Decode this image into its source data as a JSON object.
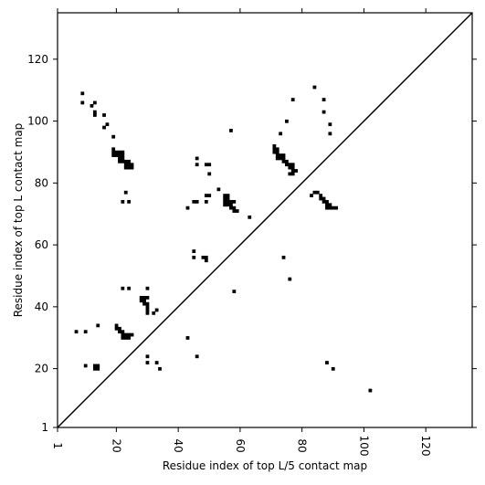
{
  "chart_data": {
    "type": "heatmap",
    "title": "",
    "xlabel": "Residue index of top L/5 contact map",
    "ylabel": "Residue index of top L contact map",
    "xlim": [
      1,
      135
    ],
    "ylim": [
      1,
      135
    ],
    "x_ticks": [
      "1",
      "20",
      "40",
      "60",
      "80",
      "100",
      "120"
    ],
    "y_ticks": [
      "1",
      "20",
      "40",
      "60",
      "80",
      "100",
      "120"
    ],
    "x_tick_rotation": 90,
    "diagonal_line": {
      "from": [
        1,
        1
      ],
      "to": [
        135,
        135
      ]
    },
    "grid": false,
    "cell_color": "#000000",
    "lower_triangle_contacts": [
      [
        7,
        32
      ],
      [
        10,
        32
      ],
      [
        10,
        21
      ],
      [
        13,
        21
      ],
      [
        13,
        20
      ],
      [
        14,
        21
      ],
      [
        14,
        20
      ],
      [
        14,
        34
      ],
      [
        20,
        34
      ],
      [
        20,
        33
      ],
      [
        21,
        33
      ],
      [
        21,
        32
      ],
      [
        22,
        32
      ],
      [
        22,
        31
      ],
      [
        22,
        30
      ],
      [
        23,
        31
      ],
      [
        23,
        30
      ],
      [
        24,
        31
      ],
      [
        24,
        30
      ],
      [
        25,
        31
      ],
      [
        22,
        46
      ],
      [
        24,
        46
      ],
      [
        28,
        43
      ],
      [
        29,
        43
      ],
      [
        28,
        42
      ],
      [
        29,
        42
      ],
      [
        30,
        43
      ],
      [
        29,
        41
      ],
      [
        30,
        41
      ],
      [
        30,
        40
      ],
      [
        30,
        39
      ],
      [
        30,
        38
      ],
      [
        32,
        38
      ],
      [
        33,
        39
      ],
      [
        30,
        46
      ],
      [
        30,
        24
      ],
      [
        30,
        22
      ],
      [
        33,
        22
      ],
      [
        34,
        20
      ],
      [
        43,
        30
      ],
      [
        46,
        24
      ],
      [
        45,
        58
      ],
      [
        45,
        56
      ],
      [
        48,
        56
      ],
      [
        49,
        56
      ],
      [
        49,
        55
      ],
      [
        58,
        45
      ],
      [
        74,
        56
      ],
      [
        76,
        49
      ],
      [
        83,
        76
      ],
      [
        84,
        77
      ],
      [
        85,
        77
      ],
      [
        86,
        76
      ],
      [
        86,
        75
      ],
      [
        87,
        75
      ],
      [
        87,
        74
      ],
      [
        88,
        74
      ],
      [
        88,
        73
      ],
      [
        88,
        72
      ],
      [
        89,
        73
      ],
      [
        89,
        72
      ],
      [
        90,
        72
      ],
      [
        91,
        72
      ],
      [
        88,
        22
      ],
      [
        90,
        20
      ],
      [
        102,
        13
      ]
    ],
    "upper_triangle_contacts": [
      [
        9,
        109
      ],
      [
        9,
        106
      ],
      [
        12,
        105
      ],
      [
        13,
        106
      ],
      [
        13,
        103
      ],
      [
        13,
        102
      ],
      [
        16,
        102
      ],
      [
        16,
        98
      ],
      [
        17,
        99
      ],
      [
        19,
        95
      ],
      [
        19,
        91
      ],
      [
        19,
        90
      ],
      [
        19,
        89
      ],
      [
        20,
        90
      ],
      [
        20,
        89
      ],
      [
        21,
        90
      ],
      [
        21,
        89
      ],
      [
        22,
        90
      ],
      [
        22,
        89
      ],
      [
        21,
        88
      ],
      [
        22,
        88
      ],
      [
        21,
        87
      ],
      [
        22,
        87
      ],
      [
        23,
        87
      ],
      [
        24,
        87
      ],
      [
        23,
        86
      ],
      [
        24,
        86
      ],
      [
        25,
        86
      ],
      [
        23,
        85
      ],
      [
        24,
        85
      ],
      [
        25,
        85
      ],
      [
        23,
        77
      ],
      [
        22,
        74
      ],
      [
        24,
        74
      ],
      [
        43,
        72
      ],
      [
        45,
        74
      ],
      [
        46,
        74
      ],
      [
        46,
        88
      ],
      [
        46,
        86
      ],
      [
        49,
        86
      ],
      [
        50,
        86
      ],
      [
        50,
        83
      ],
      [
        49,
        76
      ],
      [
        50,
        76
      ],
      [
        49,
        74
      ],
      [
        53,
        78
      ],
      [
        55,
        76
      ],
      [
        56,
        76
      ],
      [
        55,
        75
      ],
      [
        56,
        75
      ],
      [
        55,
        74
      ],
      [
        56,
        74
      ],
      [
        57,
        74
      ],
      [
        58,
        74
      ],
      [
        55,
        73
      ],
      [
        56,
        73
      ],
      [
        57,
        73
      ],
      [
        57,
        72
      ],
      [
        58,
        72
      ],
      [
        58,
        71
      ],
      [
        59,
        71
      ],
      [
        57,
        97
      ],
      [
        63,
        69
      ],
      [
        71,
        92
      ],
      [
        71,
        91
      ],
      [
        72,
        91
      ],
      [
        71,
        90
      ],
      [
        72,
        90
      ],
      [
        72,
        89
      ],
      [
        73,
        89
      ],
      [
        74,
        89
      ],
      [
        72,
        88
      ],
      [
        73,
        88
      ],
      [
        74,
        88
      ],
      [
        74,
        87
      ],
      [
        75,
        87
      ],
      [
        75,
        86
      ],
      [
        76,
        86
      ],
      [
        77,
        86
      ],
      [
        76,
        85
      ],
      [
        77,
        85
      ],
      [
        77,
        84
      ],
      [
        78,
        84
      ],
      [
        76,
        83
      ],
      [
        77,
        83
      ],
      [
        73,
        96
      ],
      [
        75,
        100
      ],
      [
        77,
        107
      ],
      [
        84,
        111
      ],
      [
        87,
        107
      ],
      [
        87,
        103
      ],
      [
        89,
        99
      ],
      [
        89,
        96
      ]
    ]
  }
}
